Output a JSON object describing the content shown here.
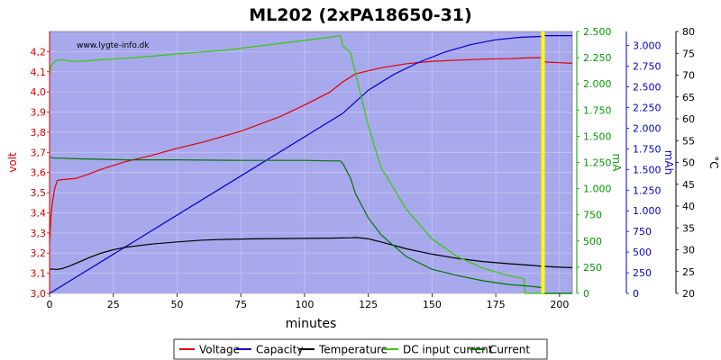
{
  "chart_data": {
    "type": "line",
    "title": "ML202 (2xPA18650-31)",
    "watermark": "www.lygte-info.dk",
    "xlabel": "minutes",
    "xlim": [
      0,
      205
    ],
    "xticks": [
      0,
      25,
      50,
      75,
      100,
      125,
      150,
      175,
      200
    ],
    "background": "#a8a8ec",
    "grid": true,
    "legend_position": "bottom",
    "marker_line": {
      "x": 193.5,
      "color": "#ffff00"
    },
    "axes": [
      {
        "id": "volt",
        "label": "volt",
        "side": "left",
        "color": "#dd0000",
        "lim": [
          3.0,
          4.3
        ],
        "ticks": [
          3.0,
          3.1,
          3.2,
          3.3,
          3.4,
          3.5,
          3.6,
          3.7,
          3.8,
          3.9,
          4.0,
          4.1,
          4.2
        ],
        "tick_labels": [
          "3,0",
          "3,1",
          "3,2",
          "3,3",
          "3,4",
          "3,5",
          "3,6",
          "3,7",
          "3,8",
          "3,9",
          "4,0",
          "4,1",
          "4,2"
        ]
      },
      {
        "id": "ma",
        "label": "mA",
        "side": "right",
        "color": "#009900",
        "lim": [
          0,
          2500
        ],
        "ticks": [
          0,
          250,
          500,
          750,
          1000,
          1250,
          1500,
          1750,
          2000,
          2250,
          2500
        ],
        "tick_labels": [
          "0",
          "250",
          "500",
          "750",
          "1.000",
          "1.250",
          "1.500",
          "1.750",
          "2.000",
          "2.250",
          "2.500"
        ]
      },
      {
        "id": "mah",
        "label": "mAh",
        "side": "right",
        "color": "#0000cc",
        "lim": [
          0,
          3170
        ],
        "ticks": [
          0,
          250,
          500,
          750,
          1000,
          1250,
          1500,
          1750,
          2000,
          2250,
          2500,
          2750,
          3000
        ],
        "tick_labels": [
          "0",
          "250",
          "500",
          "750",
          "1.000",
          "1.250",
          "1.500",
          "1.750",
          "2.000",
          "2.250",
          "2.500",
          "2.750",
          "3.000"
        ]
      },
      {
        "id": "temp",
        "label": "°C",
        "side": "right",
        "color": "#000000",
        "lim": [
          20,
          80
        ],
        "ticks": [
          20,
          25,
          30,
          35,
          40,
          45,
          50,
          55,
          60,
          65,
          70,
          75,
          80
        ],
        "tick_labels": [
          "20",
          "25",
          "30",
          "35",
          "40",
          "45",
          "50",
          "55",
          "60",
          "65",
          "70",
          "75",
          "80"
        ]
      }
    ],
    "series": [
      {
        "name": "Voltage",
        "axis": "volt",
        "color": "#e00000",
        "x": [
          0,
          0.5,
          1,
          2,
          3,
          5,
          10,
          15,
          20,
          25,
          30,
          40,
          50,
          60,
          75,
          90,
          100,
          110,
          115,
          120,
          130,
          140,
          150,
          160,
          170,
          180,
          186,
          190,
          193,
          194,
          195,
          200,
          205
        ],
        "y": [
          3.25,
          3.38,
          3.44,
          3.52,
          3.56,
          3.565,
          3.57,
          3.59,
          3.615,
          3.635,
          3.655,
          3.685,
          3.72,
          3.75,
          3.805,
          3.875,
          3.935,
          4.0,
          4.05,
          4.09,
          4.12,
          4.14,
          4.152,
          4.158,
          4.163,
          4.165,
          4.168,
          4.17,
          4.17,
          4.15,
          4.148,
          4.145,
          4.142
        ]
      },
      {
        "name": "Capacity",
        "axis": "mah",
        "color": "#0000cc",
        "x": [
          0,
          115,
          125,
          135,
          145,
          155,
          165,
          175,
          185,
          193,
          194,
          205
        ],
        "y": [
          0,
          2180,
          2460,
          2650,
          2800,
          2920,
          3010,
          3070,
          3100,
          3110,
          3120,
          3120
        ]
      },
      {
        "name": "Temperature",
        "axis": "temp",
        "color": "#000000",
        "x": [
          0,
          1,
          2,
          3,
          5,
          8,
          12,
          16,
          20,
          25,
          30,
          40,
          50,
          60,
          70,
          80,
          90,
          100,
          110,
          115,
          118,
          120,
          122,
          125,
          130,
          140,
          150,
          160,
          170,
          180,
          190,
          193,
          200,
          205
        ],
        "y": [
          25.5,
          25.6,
          25.5,
          25.5,
          25.7,
          26.3,
          27.3,
          28.3,
          29.2,
          30.0,
          30.6,
          31.3,
          31.8,
          32.2,
          32.4,
          32.5,
          32.55,
          32.6,
          32.65,
          32.7,
          32.75,
          32.8,
          32.7,
          32.5,
          31.8,
          30.2,
          29.0,
          28.0,
          27.3,
          26.8,
          26.4,
          26.2,
          26.0,
          25.9
        ]
      },
      {
        "name": "DC input current",
        "axis": "ma",
        "color": "#33cc00",
        "x": [
          0,
          0.5,
          1,
          2,
          3,
          5,
          8,
          10,
          15,
          20,
          30,
          40,
          50,
          60,
          70,
          80,
          90,
          100,
          110,
          114,
          115,
          118,
          120,
          125,
          130,
          140,
          150,
          160,
          170,
          180,
          186,
          186.5,
          205
        ],
        "y": [
          2090,
          2160,
          2190,
          2210,
          2225,
          2230,
          2220,
          2215,
          2220,
          2230,
          2245,
          2265,
          2285,
          2305,
          2325,
          2355,
          2385,
          2415,
          2445,
          2460,
          2360,
          2300,
          2100,
          1600,
          1200,
          800,
          520,
          350,
          240,
          170,
          140,
          0,
          0
        ]
      },
      {
        "name": "Current",
        "axis": "ma",
        "color": "#007700",
        "x": [
          0,
          1,
          3,
          5,
          10,
          20,
          30,
          50,
          75,
          100,
          110,
          114,
          115,
          118,
          120,
          125,
          130,
          140,
          150,
          160,
          170,
          180,
          190,
          193,
          194,
          205
        ],
        "y": [
          1300,
          1295,
          1290,
          1290,
          1285,
          1280,
          1275,
          1275,
          1270,
          1270,
          1265,
          1265,
          1240,
          1100,
          950,
          720,
          560,
          350,
          230,
          170,
          120,
          85,
          65,
          55,
          0,
          0
        ]
      }
    ]
  }
}
